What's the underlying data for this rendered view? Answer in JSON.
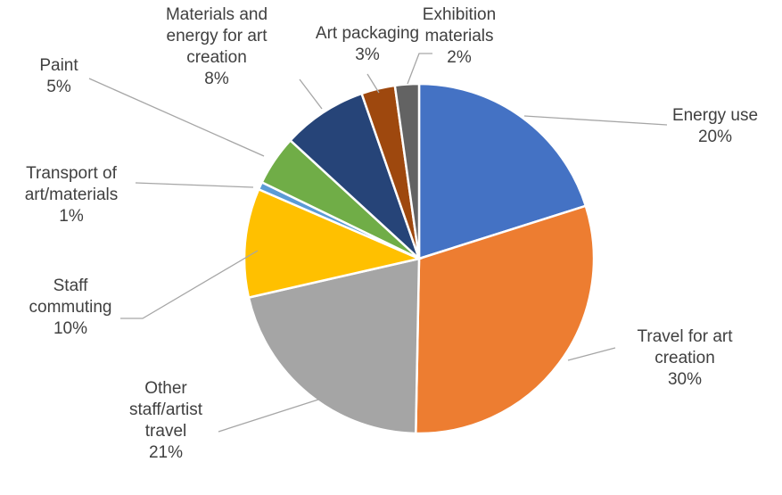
{
  "chart_data": {
    "type": "pie",
    "title": "",
    "start_angle_deg": 0,
    "direction": "clockwise",
    "legend": "none",
    "slices": [
      {
        "label_lines": [
          "Energy use"
        ],
        "value_label": "20%",
        "value": 20,
        "color": "#4472C4"
      },
      {
        "label_lines": [
          "Travel for art",
          "creation"
        ],
        "value_label": "30%",
        "value": 30,
        "color": "#ED7D31"
      },
      {
        "label_lines": [
          "Other",
          "staff/artist",
          "travel"
        ],
        "value_label": "21%",
        "value": 21,
        "color": "#A5A5A5"
      },
      {
        "label_lines": [
          "Staff",
          "commuting"
        ],
        "value_label": "10%",
        "value": 10,
        "color": "#FFC000"
      },
      {
        "label_lines": [
          "Transport of",
          "art/materials"
        ],
        "value_label": "1%",
        "value": 0.7,
        "color": "#5B9BD5"
      },
      {
        "label_lines": [
          "Paint"
        ],
        "value_label": "5%",
        "value": 4.6,
        "color": "#70AD47"
      },
      {
        "label_lines": [
          "Materials and",
          "energy for art",
          "creation"
        ],
        "value_label": "8%",
        "value": 7.8,
        "color": "#264478"
      },
      {
        "label_lines": [
          "Art packaging"
        ],
        "value_label": "3%",
        "value": 3.1,
        "color": "#9E480E"
      },
      {
        "label_lines": [
          "Exhibition",
          "materials"
        ],
        "value_label": "2%",
        "value": 2.2,
        "color": "#636363"
      }
    ]
  }
}
